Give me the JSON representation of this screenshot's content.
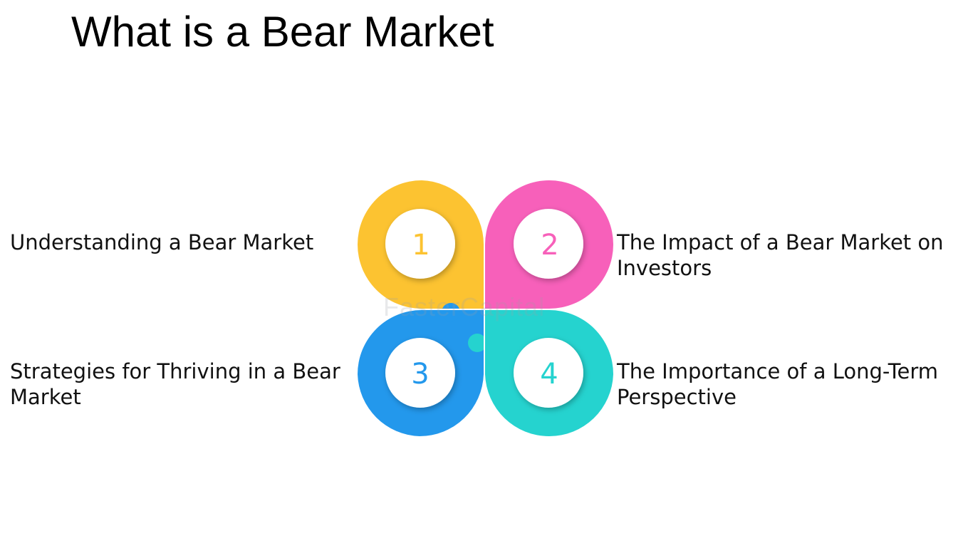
{
  "title": "What is a Bear Market",
  "items": [
    {
      "number": "1",
      "label": "Understanding a Bear Market",
      "color": "#FCC331"
    },
    {
      "number": "2",
      "label": "The Impact of a Bear Market on Investors",
      "color": "#F760BA"
    },
    {
      "number": "3",
      "label": "Strategies for Thriving in a Bear Market",
      "color": "#2398EC"
    },
    {
      "number": "4",
      "label": "The Importance of a Long-Term Perspective",
      "color": "#25D3CF"
    }
  ],
  "watermark": "FasterCapital",
  "colors": {
    "inner_circle": "#FFFFFF",
    "text": "#111111"
  }
}
